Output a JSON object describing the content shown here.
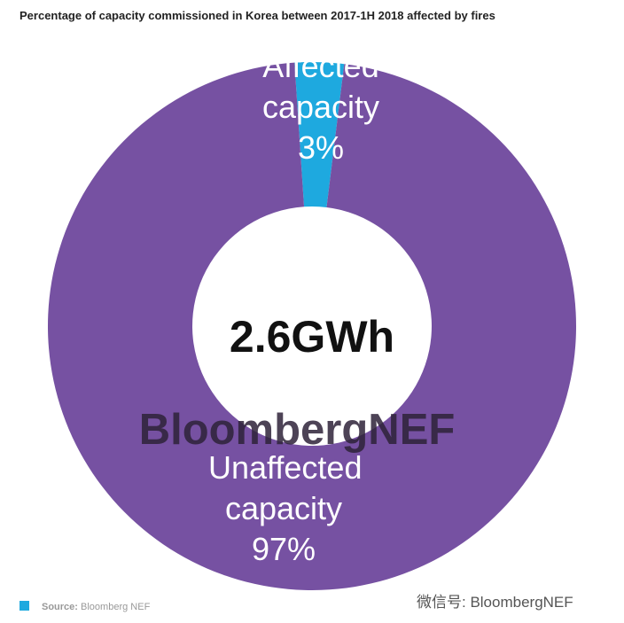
{
  "chart_data": {
    "type": "donut",
    "title": "Percentage of capacity commissioned in Korea between 2017-1H 2018 affected by fires",
    "categories": [
      "Affected capacity",
      "Unaffected capacity"
    ],
    "values": [
      3,
      97
    ],
    "value_labels": [
      "3%",
      "97%"
    ],
    "colors": [
      "#1ea9df",
      "#7651a2"
    ],
    "center_label": "2.6GWh",
    "watermark": "BloombergNEF"
  },
  "source": {
    "label": "Source:",
    "text": "Bloomberg NEF"
  },
  "wechat_id": "微信号: BloombergNEF"
}
